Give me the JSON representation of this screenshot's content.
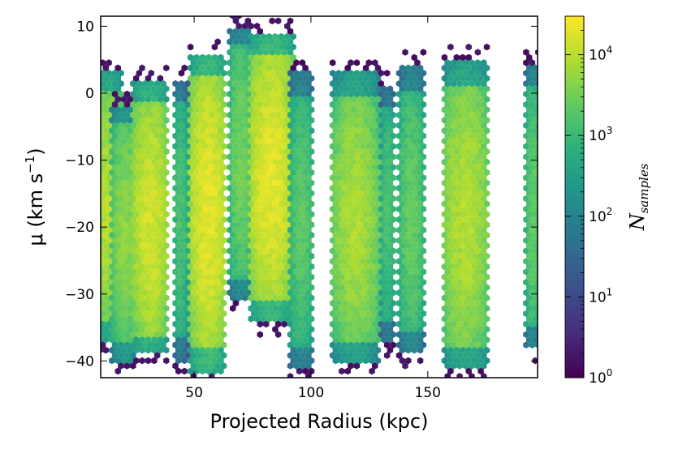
{
  "chart_data": {
    "type": "heatmap",
    "subtype": "hexbin",
    "title": "",
    "xlabel": "Projected Radius (kpc)",
    "ylabel_main": "μ (km s",
    "ylabel_exp": "−1",
    "ylabel_close": ")",
    "xlim": [
      10,
      197
    ],
    "ylim": [
      -42.5,
      11.5
    ],
    "xticks": [
      50,
      100,
      150
    ],
    "yticks": [
      10,
      0,
      -10,
      -20,
      -30,
      -40
    ],
    "ytick_labels": [
      "10",
      "0",
      "−10",
      "−20",
      "−30",
      "−40"
    ],
    "grid": false,
    "colormap": "viridis",
    "colorbar": {
      "label_main": "N",
      "label_sub": "samples",
      "scale": "log",
      "range": [
        1,
        30000
      ],
      "ticks": [
        1,
        10,
        100,
        1000,
        10000
      ],
      "tick_base": "10",
      "tick_exps": [
        "0",
        "1",
        "2",
        "3",
        "4"
      ]
    },
    "clusters": [
      {
        "x": 13,
        "halfwidth": 6,
        "ymin": -37,
        "ymax": 3,
        "center": -17,
        "peak": 9000
      },
      {
        "x": 20,
        "halfwidth": 5,
        "ymin": -40,
        "ymax": -2,
        "center": -20,
        "peak": 5000
      },
      {
        "x": 31,
        "halfwidth": 7,
        "ymin": -39,
        "ymax": 2,
        "center": -20,
        "peak": 15000
      },
      {
        "x": 44,
        "halfwidth": 3,
        "ymin": -40,
        "ymax": 2,
        "center": -18,
        "peak": 1500
      },
      {
        "x": 56,
        "halfwidth": 7,
        "ymin": -42,
        "ymax": 6,
        "center": -17,
        "peak": 20000
      },
      {
        "x": 70,
        "halfwidth": 5,
        "ymin": -31,
        "ymax": 10,
        "center": -10,
        "peak": 3000
      },
      {
        "x": 83,
        "halfwidth": 9,
        "ymin": -34,
        "ymax": 9,
        "center": -13,
        "peak": 20000
      },
      {
        "x": 96,
        "halfwidth": 5,
        "ymin": -41,
        "ymax": 3,
        "center": -20,
        "peak": 2000
      },
      {
        "x": 119,
        "halfwidth": 9,
        "ymin": -40,
        "ymax": 3,
        "center": -19,
        "peak": 8000
      },
      {
        "x": 133,
        "halfwidth": 3,
        "ymin": -37,
        "ymax": 1,
        "center": -18,
        "peak": 1500
      },
      {
        "x": 143,
        "halfwidth": 5,
        "ymin": -39,
        "ymax": 4,
        "center": -19,
        "peak": 2500
      },
      {
        "x": 166,
        "halfwidth": 9,
        "ymin": -41,
        "ymax": 5,
        "center": -19,
        "peak": 9000
      },
      {
        "x": 195,
        "halfwidth": 3,
        "ymin": -38,
        "ymax": 4,
        "center": -18,
        "peak": 2500
      }
    ]
  }
}
